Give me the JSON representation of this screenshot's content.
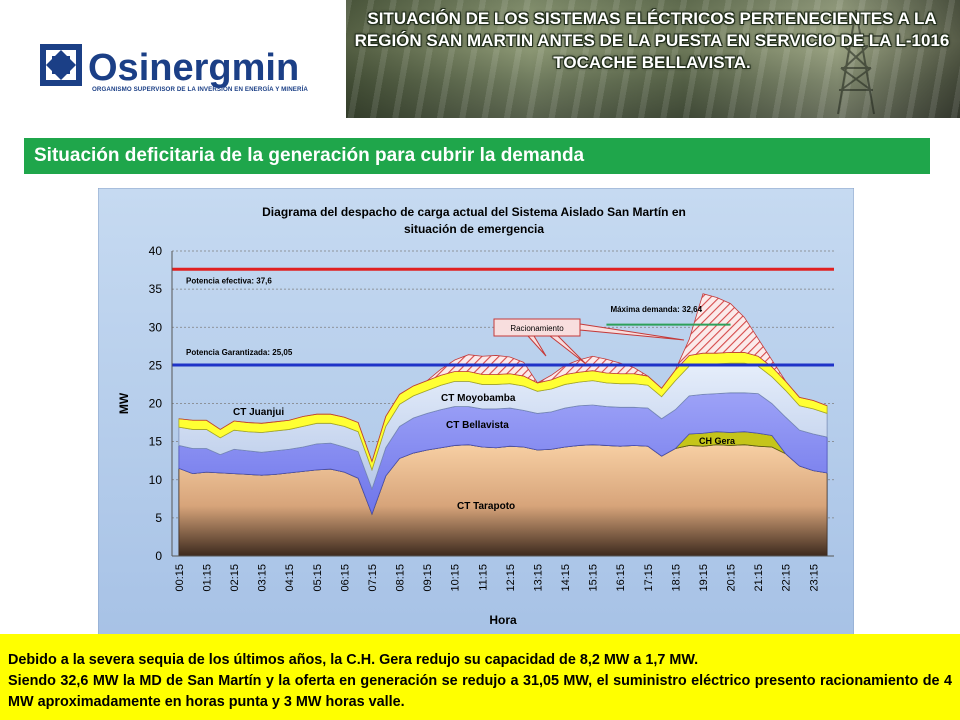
{
  "header": {
    "logo_text": "Osinergmin",
    "logo_tagline": "ORGANISMO SUPERVISOR DE LA INVERSIÓN EN ENERGÍA Y MINERÍA",
    "banner_title": "SITUACIÓN DE LOS SISTEMAS ELÉCTRICOS PERTENECIENTES A LA REGIÓN SAN MARTIN ANTES DE LA PUESTA EN SERVICIO DE LA L-1016 TOCACHE BELLAVISTA."
  },
  "section_title": "Situación deficitaria de la generación para cubrir la demanda",
  "colors": {
    "brand_blue": "#1b3f86",
    "section_green": "#1fa64b",
    "footer_yellow": "#ffff00",
    "effective_line": "#e02020",
    "guaranteed_line": "#1f33c8",
    "max_demand_line": "#2ea05a",
    "area_tarapoto": "#f5c79b",
    "area_bellavista": "#7f85f0",
    "area_moyobamba": "#c8d6ee",
    "area_gera": "#c5c51a",
    "area_juanjui": "#ffff33",
    "area_rationing": "#e36363"
  },
  "chart_data": {
    "type": "area",
    "title": "Diagrama del despacho de carga actual del  Sistema Aislado San Martín en situación de emergencia",
    "xlabel": "Hora",
    "ylabel": "MW",
    "ylim": [
      0,
      40
    ],
    "yticks": [
      0,
      5,
      10,
      15,
      20,
      25,
      30,
      35,
      40
    ],
    "x_tick_labels": [
      "00:15",
      "01:15",
      "02:15",
      "03:15",
      "04:15",
      "05:15",
      "06:15",
      "07:15",
      "08:15",
      "09:15",
      "10:15",
      "11:15",
      "12:15",
      "13:15",
      "14:15",
      "15:15",
      "16:15",
      "17:15",
      "18:15",
      "19:15",
      "20:15",
      "21:15",
      "22:15",
      "23:15"
    ],
    "x": [
      "00:15",
      "00:45",
      "01:15",
      "01:45",
      "02:15",
      "02:45",
      "03:15",
      "03:45",
      "04:15",
      "04:45",
      "05:15",
      "05:45",
      "06:15",
      "06:45",
      "07:15",
      "07:45",
      "08:15",
      "08:45",
      "09:15",
      "09:45",
      "10:15",
      "10:45",
      "11:15",
      "11:45",
      "12:15",
      "12:45",
      "13:15",
      "13:45",
      "14:15",
      "14:45",
      "15:15",
      "15:45",
      "16:15",
      "16:45",
      "17:15",
      "17:45",
      "18:15",
      "18:45",
      "19:15",
      "19:45",
      "20:15",
      "20:45",
      "21:15",
      "21:45",
      "22:15",
      "22:45",
      "23:15",
      "23:45"
    ],
    "series": [
      {
        "name": "CT Tarapoto",
        "values": [
          11.5,
          10.8,
          11.0,
          10.9,
          10.8,
          10.7,
          10.6,
          10.7,
          10.9,
          11.1,
          11.3,
          11.4,
          11.0,
          10.2,
          5.5,
          10.5,
          12.8,
          13.5,
          13.9,
          14.2,
          14.5,
          14.6,
          14.3,
          14.2,
          14.4,
          14.3,
          13.9,
          14.0,
          14.3,
          14.5,
          14.6,
          14.5,
          14.4,
          14.5,
          14.4,
          13.1,
          14.1,
          14.5,
          14.4,
          14.6,
          14.5,
          14.6,
          14.4,
          14.3,
          13.4,
          11.8,
          11.2,
          10.9
        ]
      },
      {
        "name": "CH Gera",
        "values": [
          0,
          0,
          0,
          0,
          0,
          0,
          0,
          0,
          0,
          0,
          0,
          0,
          0,
          0,
          0,
          0,
          0,
          0,
          0,
          0,
          0,
          0,
          0,
          0,
          0,
          0,
          0,
          0,
          0,
          0,
          0,
          0,
          0,
          0,
          0,
          0,
          0,
          1.5,
          1.7,
          1.7,
          1.7,
          1.7,
          1.7,
          1.5,
          0,
          0,
          0,
          0
        ]
      },
      {
        "name": "CT Bellavista",
        "values": [
          3.0,
          3.3,
          3.1,
          2.4,
          3.2,
          3.1,
          3.0,
          3.1,
          3.1,
          3.2,
          3.4,
          3.4,
          3.3,
          3.5,
          3.3,
          3.7,
          4.2,
          4.6,
          4.8,
          5.0,
          5.1,
          5.0,
          5.0,
          5.1,
          5.0,
          4.8,
          4.8,
          4.9,
          5.1,
          5.2,
          5.2,
          5.1,
          5.1,
          5.0,
          5.0,
          4.9,
          5.1,
          5.0,
          5.1,
          5.0,
          5.2,
          5.1,
          5.2,
          4.2,
          4.8,
          4.7,
          4.8,
          4.7
        ]
      },
      {
        "name": "CT Moyobamba",
        "values": [
          2.4,
          2.5,
          2.5,
          2.2,
          2.5,
          2.5,
          2.6,
          2.6,
          2.6,
          2.7,
          2.7,
          2.6,
          2.7,
          2.6,
          2.5,
          2.8,
          2.9,
          2.9,
          3.0,
          3.2,
          3.3,
          3.3,
          3.2,
          3.2,
          3.2,
          3.2,
          2.9,
          3.0,
          3.1,
          3.1,
          3.2,
          3.1,
          3.1,
          3.1,
          3.0,
          2.9,
          3.8,
          3.9,
          4.0,
          3.9,
          3.9,
          3.9,
          3.6,
          3.5,
          3.5,
          3.2,
          3.3,
          3.1
        ]
      },
      {
        "name": "CT Juanjui",
        "values": [
          1.1,
          1.2,
          1.2,
          1.1,
          1.2,
          1.2,
          1.2,
          1.2,
          1.2,
          1.3,
          1.2,
          1.2,
          1.2,
          1.2,
          1.1,
          1.3,
          1.3,
          1.3,
          1.3,
          1.3,
          1.3,
          1.3,
          1.3,
          1.3,
          1.3,
          1.3,
          1.1,
          1.2,
          1.3,
          1.3,
          1.3,
          1.3,
          1.3,
          1.3,
          1.2,
          1.1,
          1.4,
          1.4,
          1.4,
          1.4,
          1.4,
          1.4,
          1.3,
          1.3,
          1.2,
          1.1,
          1.1,
          1.0
        ]
      },
      {
        "name": "Racionamiento",
        "values": [
          0,
          0,
          0,
          0,
          0,
          0,
          0,
          0,
          0,
          0,
          0,
          0,
          0,
          0,
          0,
          0,
          0,
          0,
          0,
          0.8,
          1.5,
          2.2,
          2.4,
          2.5,
          2.2,
          1.8,
          0,
          0.6,
          1.2,
          1.6,
          1.9,
          1.8,
          1.4,
          0.8,
          0,
          0,
          0,
          2.1,
          7.8,
          7.3,
          6.4,
          4.6,
          2.3,
          0.9,
          0,
          0,
          0,
          0
        ]
      }
    ],
    "reference_lines": [
      {
        "label": "Potencia efectiva: 37,6",
        "value": 37.6
      },
      {
        "label": "Potencia Garantizada: 25,05",
        "value": 25.05
      },
      {
        "label": "Máxima demanda: 32,64",
        "value": 32.64
      }
    ],
    "annotations": {
      "rationing": "Racionamiento",
      "ct_juanjui": "CT Juanjui",
      "ct_moyobamba": "CT Moyobamba",
      "ct_bellavista": "CT Bellavista",
      "ct_tarapoto": "CT Tarapoto",
      "ch_gera": "CH Gera"
    },
    "grid": true,
    "legend": "none"
  },
  "footer": {
    "line1": "Debido a la severa sequia de los últimos años, la C.H. Gera redujo su capacidad de 8,2 MW a 1,7 MW.",
    "line2": "Siendo 32,6 MW la MD de San Martín y la oferta en generación se redujo a 31,05 MW, el suministro eléctrico presento racionamiento de 4 MW aproximadamente en horas punta y 3 MW horas valle."
  }
}
